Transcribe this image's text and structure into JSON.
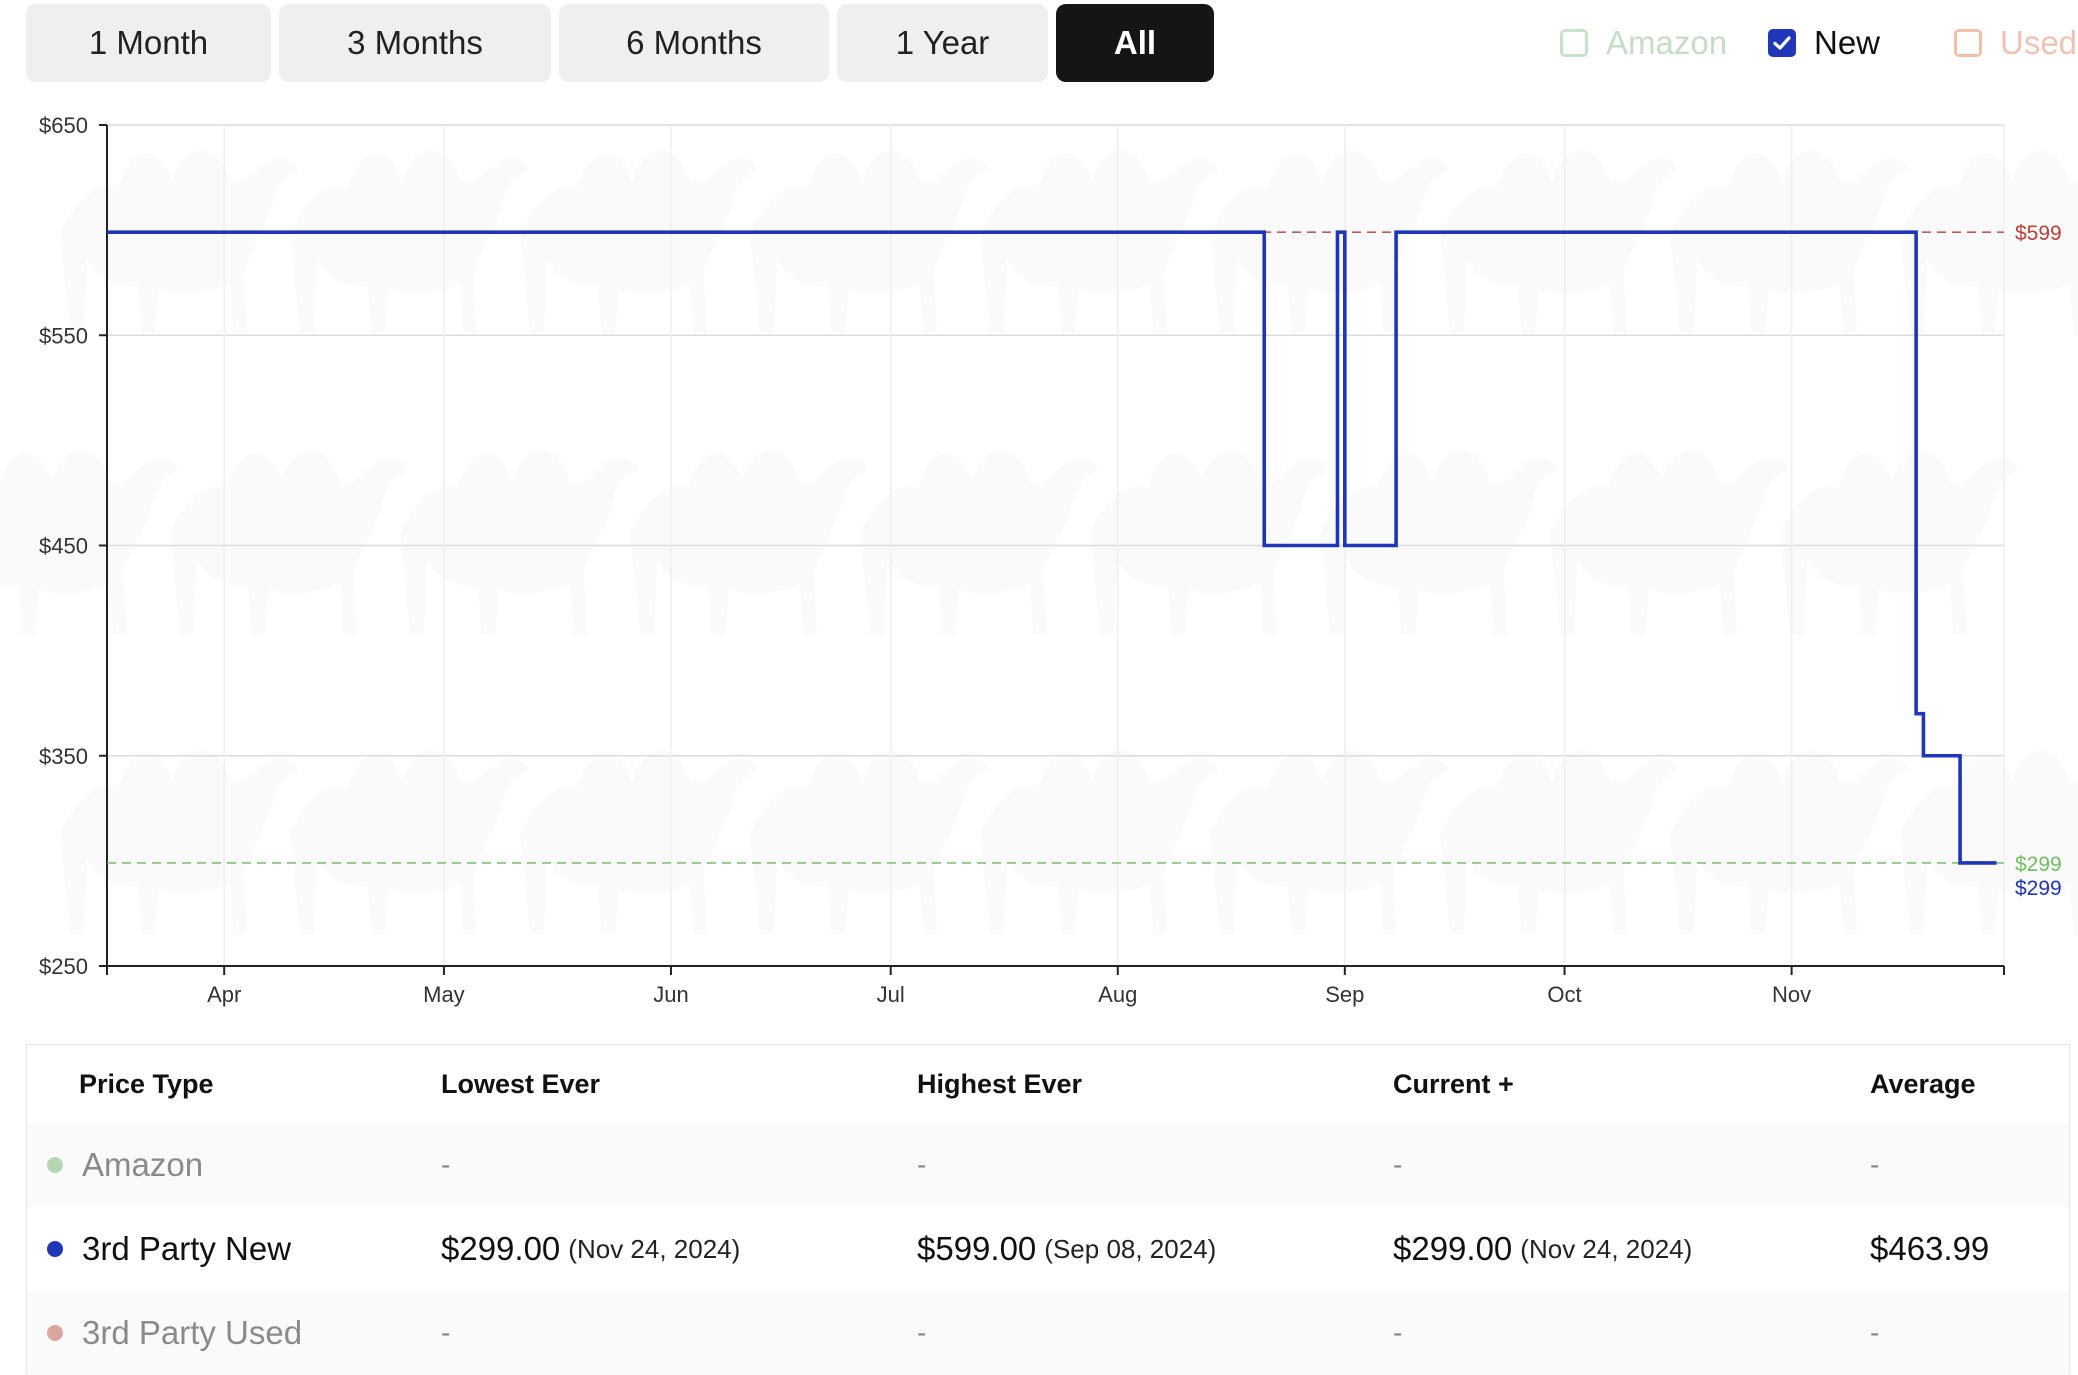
{
  "range_buttons": [
    {
      "label": "1 Month",
      "active": false
    },
    {
      "label": "3 Months",
      "active": false
    },
    {
      "label": "6 Months",
      "active": false
    },
    {
      "label": "1 Year",
      "active": false
    },
    {
      "label": "All",
      "active": true
    }
  ],
  "legend": [
    {
      "label": "Amazon",
      "checked": false,
      "color": "#b5d6b5"
    },
    {
      "label": "New",
      "checked": true,
      "color": "#1f36b8"
    },
    {
      "label": "Used",
      "checked": false,
      "color": "#efb7a0"
    }
  ],
  "colors": {
    "new_line": "#1f36b8",
    "highest_ref": "#b8403a",
    "lowest_ref": "#6fbf5f",
    "amazon_dot": "#b5d6b5",
    "used_dot": "#dba79c"
  },
  "chart_data": {
    "type": "line",
    "ylim": [
      250,
      650
    ],
    "y_ticks": [
      250,
      350,
      450,
      550,
      650
    ],
    "y_tick_labels": [
      "$250",
      "$350",
      "$450",
      "$550",
      "$650"
    ],
    "x_range": [
      "2024-03-16",
      "2024-11-30"
    ],
    "x_ticks": [
      {
        "date": "2024-04-01",
        "label": "Apr"
      },
      {
        "date": "2024-05-01",
        "label": "May"
      },
      {
        "date": "2024-06-01",
        "label": "Jun"
      },
      {
        "date": "2024-07-01",
        "label": "Jul"
      },
      {
        "date": "2024-08-01",
        "label": "Aug"
      },
      {
        "date": "2024-09-01",
        "label": "Sep"
      },
      {
        "date": "2024-10-01",
        "label": "Oct"
      },
      {
        "date": "2024-11-01",
        "label": "Nov"
      }
    ],
    "grid": true,
    "series": [
      {
        "name": "New",
        "step": true,
        "points": [
          {
            "x": "2024-03-16",
            "y": 599
          },
          {
            "x": "2024-08-21",
            "y": 450
          },
          {
            "x": "2024-08-31",
            "y": 599
          },
          {
            "x": "2024-09-01",
            "y": 450
          },
          {
            "x": "2024-09-08",
            "y": 599
          },
          {
            "x": "2024-11-18",
            "y": 370
          },
          {
            "x": "2024-11-19",
            "y": 350
          },
          {
            "x": "2024-11-24",
            "y": 299
          },
          {
            "x": "2024-11-29",
            "y": 299
          }
        ]
      }
    ],
    "reference_lines": [
      {
        "y": 599,
        "label": "$599"
      },
      {
        "y": 299,
        "label": "$299"
      }
    ],
    "end_label": "$299"
  },
  "table": {
    "headers": [
      "Price Type",
      "Lowest Ever",
      "Highest Ever",
      "Current +",
      "Average"
    ],
    "rows": [
      {
        "type": "Amazon",
        "lowest": {
          "price": "-",
          "date": ""
        },
        "highest": {
          "price": "-",
          "date": ""
        },
        "current": {
          "price": "-",
          "date": ""
        },
        "average": "-"
      },
      {
        "type": "3rd Party New",
        "lowest": {
          "price": "$299.00",
          "date": "(Nov 24, 2024)"
        },
        "highest": {
          "price": "$599.00",
          "date": "(Sep 08, 2024)"
        },
        "current": {
          "price": "$299.00",
          "date": "(Nov 24, 2024)"
        },
        "average": "$463.99"
      },
      {
        "type": "3rd Party Used",
        "lowest": {
          "price": "-",
          "date": ""
        },
        "highest": {
          "price": "-",
          "date": ""
        },
        "current": {
          "price": "-",
          "date": ""
        },
        "average": "-"
      }
    ]
  }
}
